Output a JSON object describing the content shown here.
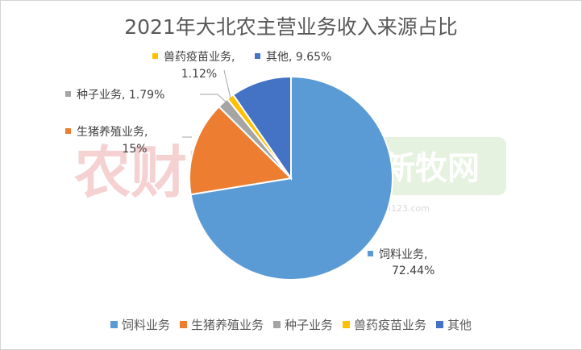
{
  "chart_data": {
    "type": "pie",
    "title": "2021年大北农主营业务收入来源占比",
    "categories": [
      "饲料业务",
      "生猪养殖业务",
      "种子业务",
      "兽药疫苗业务",
      "其他"
    ],
    "values": [
      72.44,
      15,
      1.79,
      1.12,
      9.65
    ],
    "value_labels": [
      "72.44%",
      "15%",
      "1.79%",
      "1.12%",
      "9.65%"
    ],
    "colors": [
      "#5b9bd5",
      "#ed7d31",
      "#a5a5a5",
      "#ffc000",
      "#4472c4"
    ],
    "start_angle_deg": 0,
    "direction": "clockwise",
    "legend_position": "bottom"
  },
  "watermarks": {
    "left": "农财宝典",
    "right": "新牧网",
    "right_url": "n123.com"
  }
}
